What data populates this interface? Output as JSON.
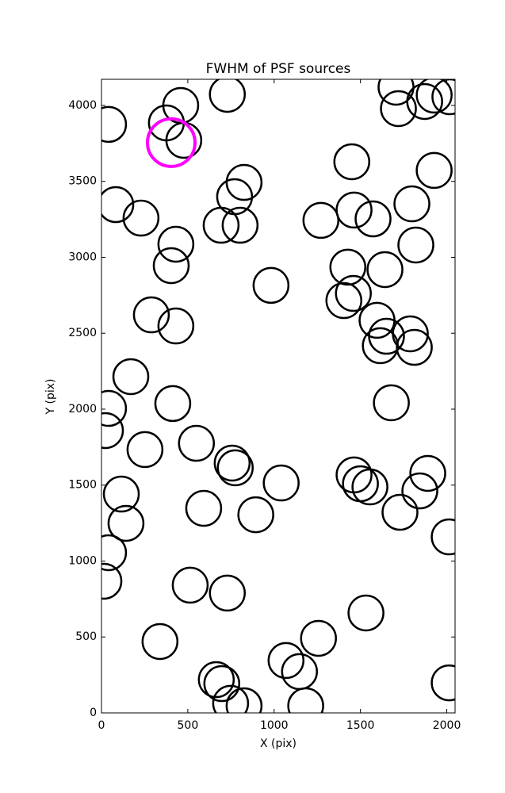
{
  "chart_data": {
    "type": "scatter",
    "title": "FWHM of PSF sources",
    "x_label": "X (pix)",
    "y_label": "Y (pix)",
    "xlim": [
      0,
      2048
    ],
    "ylim": [
      0,
      4172
    ],
    "xticks": [
      0,
      500,
      1000,
      1500,
      2000
    ],
    "yticks": [
      0,
      500,
      1000,
      1500,
      2000,
      2500,
      3000,
      3500,
      4000
    ],
    "series": [
      {
        "color": "#000000",
        "x": [
          41,
          376,
          459,
          477,
          729,
          83,
          229,
          431,
          404,
          693,
          771,
          826,
          803,
          982,
          289,
          431,
          170,
          41,
          23,
          413,
          252,
          550,
          757,
          775,
          115,
          142,
          592,
          894,
          1041,
          41,
          14,
          514,
          729,
          339,
          665,
          697,
          748,
          826,
          1069,
          1147,
          1183,
          1257,
          1532,
          1271,
          1450,
          1463,
          1573,
          1427,
          1459,
          1404,
          1642,
          1596,
          1651,
          1615,
          1789,
          1812,
          1679,
          1798,
          1821,
          1927,
          1706,
          1720,
          1872,
          1927,
          2018,
          1463,
          1500,
          1555,
          1729,
          1844,
          1890,
          2014,
          2014
        ],
        "y": [
          3875,
          3885,
          4000,
          3770,
          4073,
          3347,
          3258,
          3086,
          2945,
          3211,
          3399,
          3493,
          3211,
          2815,
          2621,
          2548,
          2214,
          2005,
          1859,
          2037,
          1734,
          1775,
          1645,
          1614,
          1441,
          1248,
          1347,
          1305,
          1514,
          1055,
          867,
          841,
          789,
          470,
          219,
          193,
          63,
          47,
          345,
          272,
          47,
          491,
          658,
          3243,
          3629,
          3311,
          3253,
          2935,
          2762,
          2715,
          2919,
          2585,
          2480,
          2418,
          2496,
          2407,
          2042,
          3352,
          3081,
          3572,
          4120,
          3979,
          4026,
          4068,
          4057,
          1567,
          1509,
          1488,
          1321,
          1462,
          1577,
          1159,
          198
        ]
      },
      {
        "color": "#ff00ff",
        "x": [
          404
        ],
        "y": [
          3755
        ]
      }
    ]
  }
}
